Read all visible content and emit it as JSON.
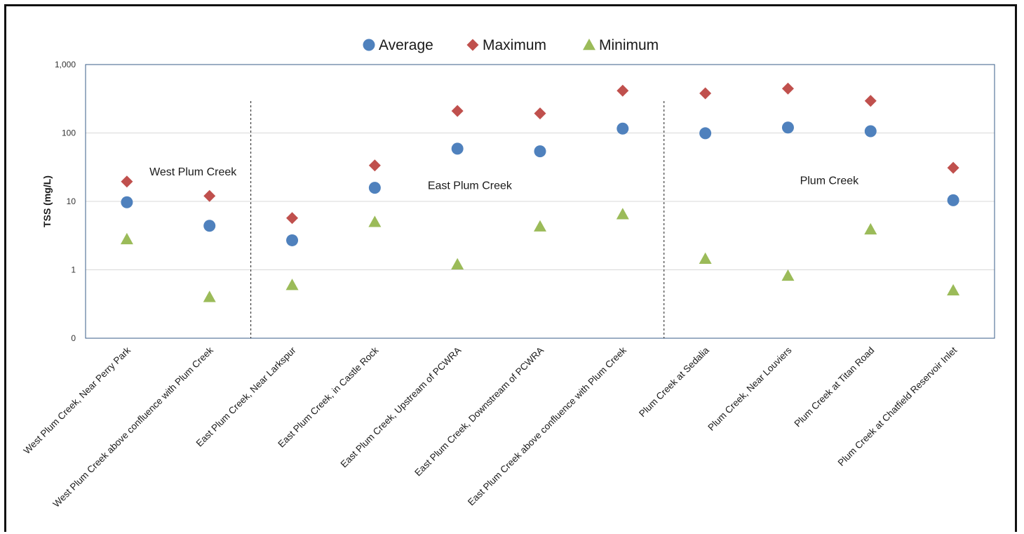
{
  "chart_data": {
    "type": "scatter",
    "y_scale": "log",
    "ylim": [
      0.1,
      1000
    ],
    "yticks": [
      0.1,
      1,
      10,
      100,
      1000
    ],
    "ytick_labels": [
      "0",
      "1",
      "10",
      "100",
      "1,000"
    ],
    "ylabel": "TSS (mg/L)",
    "xlabel": "",
    "title": "",
    "grid": "horizontal",
    "legend_position": "top-center",
    "categories": [
      "West Plum Creek, Near Perry Park",
      "West Plum Creek above confluence with Plum Creek",
      "East Plum Creek, Near Larkspur",
      "East Plum Creek, in Castle Rock",
      "East Plum Creek, Upstream of PCWRA",
      "East Plum Creek, Downstream of PCWRA",
      "East Plum Creek above confluence with Plum Creek",
      "Plum Creek at Sedalia",
      "Plum Creek, Near Louviers",
      "Plum Creek at Titan Road",
      "Plum Creek at Chatfield Reservoir Inlet"
    ],
    "series": [
      {
        "name": "Average",
        "marker": "circle",
        "color": "#4F81BD",
        "values": [
          9.7,
          4.4,
          2.7,
          15.8,
          59,
          54,
          116,
          99,
          120,
          106,
          10.4
        ]
      },
      {
        "name": "Maximum",
        "marker": "diamond",
        "color": "#C0504D",
        "values": [
          19.5,
          12,
          5.7,
          33.5,
          210,
          193,
          415,
          380,
          445,
          295,
          31
        ]
      },
      {
        "name": "Minimum",
        "marker": "triangle",
        "color": "#9BBB59",
        "values": [
          2.8,
          0.4,
          0.6,
          5.0,
          1.2,
          4.3,
          6.5,
          1.45,
          0.82,
          3.9,
          0.5
        ]
      }
    ],
    "group_labels": [
      {
        "text": "West Plum Creek",
        "x_center": 0.8,
        "y": 27
      },
      {
        "text": "East Plum Creek",
        "x_center": 4.15,
        "y": 17
      },
      {
        "text": "Plum Creek",
        "x_center": 8.5,
        "y": 20
      }
    ],
    "dividers": [
      1.5,
      6.5
    ]
  }
}
